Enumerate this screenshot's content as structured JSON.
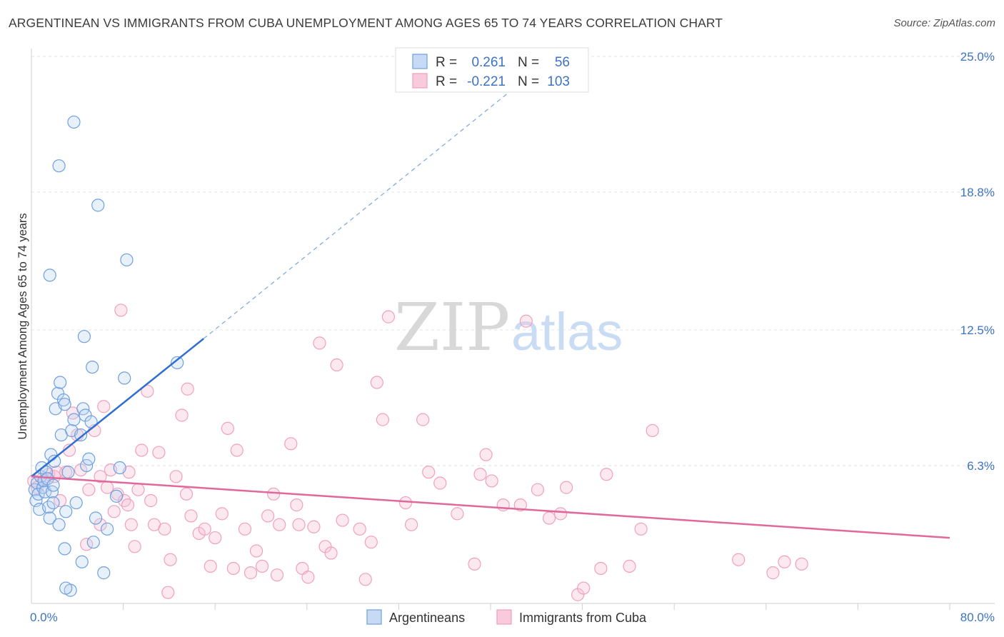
{
  "chart_data": {
    "type": "scatter",
    "title": "ARGENTINEAN VS IMMIGRANTS FROM CUBA UNEMPLOYMENT AMONG AGES 65 TO 74 YEARS CORRELATION CHART",
    "source": "Source: ZipAtlas.com",
    "xlabel": "",
    "ylabel": "Unemployment Among Ages 65 to 74 years",
    "xlim": [
      0,
      80
    ],
    "ylim": [
      0,
      25.0
    ],
    "x_tick_labels": [
      "0.0%",
      "80.0%"
    ],
    "y_ticks": [
      6.3,
      12.5,
      18.8,
      25.0
    ],
    "y_tick_labels": [
      "6.3%",
      "12.5%",
      "18.8%",
      "25.0%"
    ],
    "grid": true,
    "watermark": "ZIPatlas",
    "legend_position": "top-center",
    "stats_legend": [
      {
        "series": "Argentineans",
        "r_label": "R =",
        "r_value": "0.261",
        "n_label": "N =",
        "n_value": "56"
      },
      {
        "series": "Immigrants from Cuba",
        "r_label": "R =",
        "r_value": "-0.221",
        "n_label": "N =",
        "n_value": "103"
      }
    ],
    "series": [
      {
        "name": "Argentineans",
        "color": "#6fa0e0",
        "line_color": "#2f6fd0",
        "trend": {
          "x0": 0,
          "y0": 5.8,
          "x1": 15,
          "y1": 12.1,
          "dash_to_x": 45,
          "dash_to_y": 24.8
        },
        "points": [
          [
            0.3,
            5.2
          ],
          [
            0.4,
            4.7
          ],
          [
            0.5,
            5.5
          ],
          [
            0.6,
            5.0
          ],
          [
            0.8,
            5.8
          ],
          [
            0.9,
            6.2
          ],
          [
            1.0,
            5.3
          ],
          [
            1.1,
            5.6
          ],
          [
            1.2,
            5.1
          ],
          [
            1.3,
            6.0
          ],
          [
            0.7,
            4.3
          ],
          [
            1.5,
            4.4
          ],
          [
            1.6,
            3.9
          ],
          [
            1.4,
            5.7
          ],
          [
            1.7,
            6.8
          ],
          [
            1.8,
            5.1
          ],
          [
            2.0,
            6.5
          ],
          [
            1.9,
            4.6
          ],
          [
            1.6,
            15.0
          ],
          [
            2.4,
            3.6
          ],
          [
            2.1,
            8.9
          ],
          [
            2.3,
            9.6
          ],
          [
            2.5,
            10.1
          ],
          [
            2.6,
            7.7
          ],
          [
            2.8,
            9.3
          ],
          [
            3.0,
            4.2
          ],
          [
            3.2,
            6.0
          ],
          [
            2.9,
            2.5
          ],
          [
            3.4,
            0.6
          ],
          [
            3.5,
            7.9
          ],
          [
            3.7,
            8.4
          ],
          [
            3.9,
            4.6
          ],
          [
            4.3,
            7.7
          ],
          [
            4.5,
            8.9
          ],
          [
            4.7,
            8.6
          ],
          [
            4.8,
            6.3
          ],
          [
            5.0,
            6.6
          ],
          [
            5.2,
            8.3
          ],
          [
            5.4,
            2.8
          ],
          [
            5.6,
            3.9
          ],
          [
            4.4,
            1.9
          ],
          [
            6.3,
            1.4
          ],
          [
            6.6,
            3.4
          ],
          [
            7.4,
            4.9
          ],
          [
            7.7,
            6.2
          ],
          [
            8.1,
            10.3
          ],
          [
            8.3,
            15.7
          ],
          [
            5.3,
            10.8
          ],
          [
            5.8,
            18.2
          ],
          [
            4.6,
            12.2
          ],
          [
            3.7,
            22.0
          ],
          [
            2.4,
            20.0
          ],
          [
            2.9,
            9.1
          ],
          [
            12.7,
            11.0
          ],
          [
            3.0,
            0.7
          ],
          [
            1.9,
            5.4
          ]
        ]
      },
      {
        "name": "Immigrants from Cuba",
        "color": "#f0a0bd",
        "line_color": "#e0689a",
        "trend": {
          "x0": 0,
          "y0": 5.8,
          "x1": 80,
          "y1": 3.0
        },
        "points": [
          [
            0.2,
            5.6
          ],
          [
            0.5,
            5.3
          ],
          [
            1.0,
            5.7
          ],
          [
            1.5,
            5.9
          ],
          [
            2.0,
            5.8
          ],
          [
            2.2,
            6.0
          ],
          [
            2.5,
            4.7
          ],
          [
            3.0,
            6.0
          ],
          [
            3.3,
            7.0
          ],
          [
            3.6,
            8.7
          ],
          [
            4.0,
            7.7
          ],
          [
            4.3,
            6.1
          ],
          [
            4.8,
            2.7
          ],
          [
            5.0,
            5.2
          ],
          [
            5.5,
            7.9
          ],
          [
            6.0,
            5.8
          ],
          [
            6.3,
            9.0
          ],
          [
            6.6,
            5.3
          ],
          [
            6.9,
            6.1
          ],
          [
            7.2,
            4.2
          ],
          [
            7.5,
            5.0
          ],
          [
            7.8,
            13.4
          ],
          [
            8.1,
            4.7
          ],
          [
            8.4,
            4.5
          ],
          [
            8.7,
            3.6
          ],
          [
            9.0,
            2.6
          ],
          [
            9.3,
            5.2
          ],
          [
            9.6,
            7.0
          ],
          [
            10.1,
            9.7
          ],
          [
            10.4,
            4.7
          ],
          [
            10.7,
            3.6
          ],
          [
            11.1,
            6.9
          ],
          [
            11.6,
            3.4
          ],
          [
            11.9,
            0.5
          ],
          [
            12.1,
            2.0
          ],
          [
            12.6,
            5.8
          ],
          [
            13.1,
            8.6
          ],
          [
            13.6,
            9.8
          ],
          [
            13.9,
            4.0
          ],
          [
            14.6,
            3.2
          ],
          [
            15.1,
            3.4
          ],
          [
            15.6,
            1.7
          ],
          [
            16.0,
            3.0
          ],
          [
            16.6,
            4.1
          ],
          [
            17.1,
            8.0
          ],
          [
            17.6,
            1.6
          ],
          [
            17.9,
            7.0
          ],
          [
            18.6,
            3.4
          ],
          [
            19.1,
            1.4
          ],
          [
            19.6,
            2.4
          ],
          [
            20.1,
            1.7
          ],
          [
            20.6,
            4.0
          ],
          [
            21.1,
            5.0
          ],
          [
            21.6,
            3.6
          ],
          [
            22.6,
            7.3
          ],
          [
            23.1,
            4.5
          ],
          [
            23.6,
            1.6
          ],
          [
            24.1,
            1.2
          ],
          [
            24.6,
            3.5
          ],
          [
            25.1,
            11.9
          ],
          [
            25.6,
            2.6
          ],
          [
            26.1,
            2.3
          ],
          [
            26.6,
            10.9
          ],
          [
            27.1,
            3.8
          ],
          [
            28.6,
            3.4
          ],
          [
            29.1,
            1.1
          ],
          [
            29.6,
            2.8
          ],
          [
            30.1,
            10.1
          ],
          [
            30.6,
            8.4
          ],
          [
            31.1,
            13.1
          ],
          [
            32.6,
            4.6
          ],
          [
            33.1,
            3.6
          ],
          [
            34.1,
            8.4
          ],
          [
            34.6,
            6.0
          ],
          [
            35.6,
            5.5
          ],
          [
            37.1,
            4.1
          ],
          [
            38.6,
            1.8
          ],
          [
            39.1,
            5.9
          ],
          [
            39.6,
            6.8
          ],
          [
            40.1,
            5.6
          ],
          [
            41.1,
            4.5
          ],
          [
            42.6,
            4.5
          ],
          [
            43.1,
            12.9
          ],
          [
            44.1,
            5.2
          ],
          [
            45.1,
            3.9
          ],
          [
            46.1,
            4.1
          ],
          [
            46.6,
            5.3
          ],
          [
            47.6,
            0.4
          ],
          [
            48.1,
            0.7
          ],
          [
            49.6,
            1.6
          ],
          [
            50.1,
            5.9
          ],
          [
            52.1,
            1.7
          ],
          [
            53.1,
            3.4
          ],
          [
            54.1,
            7.9
          ],
          [
            61.6,
            2.0
          ],
          [
            64.6,
            1.4
          ],
          [
            65.6,
            1.9
          ],
          [
            67.1,
            1.8
          ],
          [
            6.0,
            3.6
          ],
          [
            8.5,
            6.0
          ],
          [
            13.5,
            5.0
          ],
          [
            21.4,
            1.3
          ],
          [
            23.3,
            3.6
          ]
        ]
      }
    ],
    "bottom_legend": [
      "Argentineans",
      "Immigrants from Cuba"
    ]
  }
}
